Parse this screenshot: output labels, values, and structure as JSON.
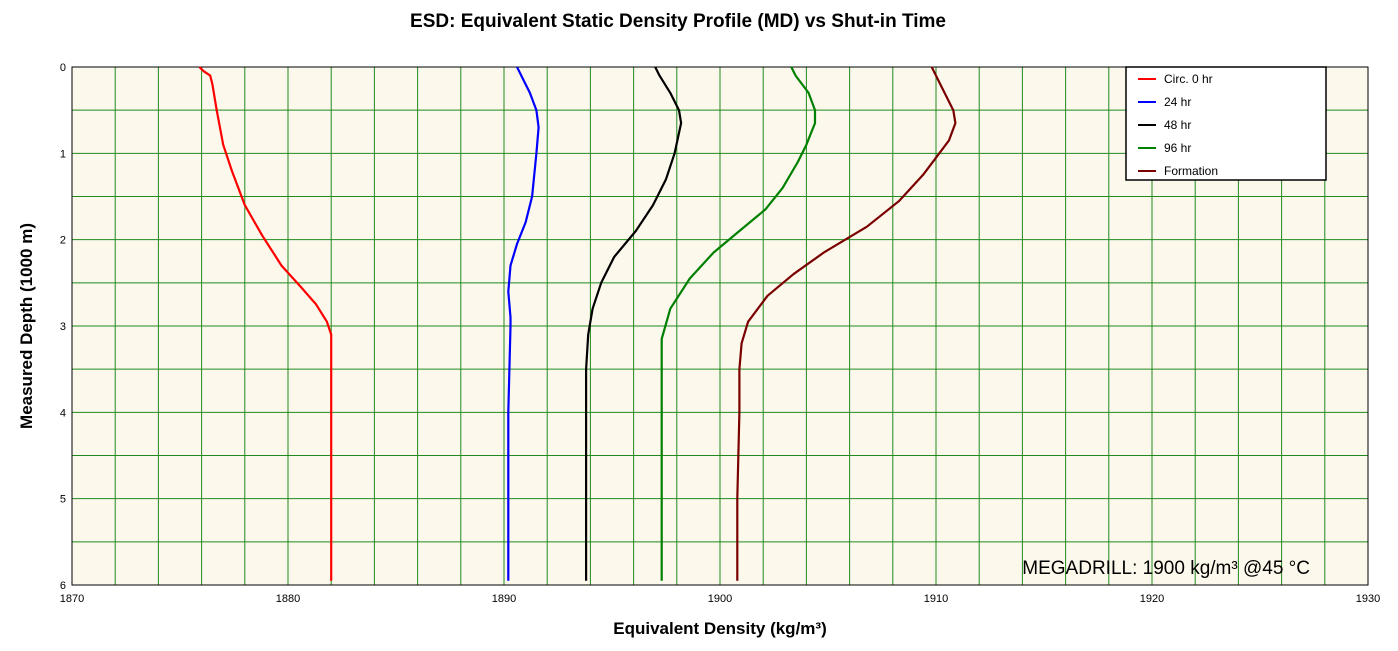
{
  "chart_data": {
    "type": "line",
    "title": "ESD: Equivalent Static Density Profile (MD) vs Shut-in Time",
    "xlabel": "Equivalent Density (kg/m³)",
    "ylabel": "Measured Depth (1000 m)",
    "xlim": [
      1870,
      1930
    ],
    "ylim": [
      0,
      6
    ],
    "y_inverted": true,
    "x_ticks": [
      "1870",
      "1880",
      "1890",
      "1900",
      "1910",
      "1920",
      "1930"
    ],
    "y_ticks": [
      "0",
      "1",
      "2",
      "3",
      "4",
      "5",
      "6"
    ],
    "grid": true,
    "plot_background": "#fcf8ec",
    "grid_color": "#1e8a1e",
    "legend_position": "top-right",
    "annotation": "MEGADRILL: 1900 kg/m³ @45 °C",
    "series": [
      {
        "name": "Circ. 0 hr",
        "color": "#ff0000",
        "points": [
          [
            1875.9,
            0
          ],
          [
            1876.1,
            0.05
          ],
          [
            1876.4,
            0.1
          ],
          [
            1876.5,
            0.2
          ],
          [
            1876.7,
            0.5
          ],
          [
            1877.0,
            0.9
          ],
          [
            1877.4,
            1.2
          ],
          [
            1878.0,
            1.6
          ],
          [
            1878.8,
            1.95
          ],
          [
            1879.7,
            2.3
          ],
          [
            1880.6,
            2.55
          ],
          [
            1881.3,
            2.75
          ],
          [
            1881.8,
            2.95
          ],
          [
            1882.0,
            3.1
          ],
          [
            1882.0,
            3.3
          ],
          [
            1882.0,
            4.0
          ],
          [
            1882.0,
            5.0
          ],
          [
            1882.0,
            5.95
          ]
        ]
      },
      {
        "name": "24 hr",
        "color": "#0000ff",
        "points": [
          [
            1890.6,
            0
          ],
          [
            1890.8,
            0.1
          ],
          [
            1891.2,
            0.3
          ],
          [
            1891.5,
            0.5
          ],
          [
            1891.6,
            0.7
          ],
          [
            1891.5,
            1.0
          ],
          [
            1891.3,
            1.5
          ],
          [
            1891.0,
            1.8
          ],
          [
            1890.6,
            2.05
          ],
          [
            1890.3,
            2.3
          ],
          [
            1890.2,
            2.6
          ],
          [
            1890.3,
            2.9
          ],
          [
            1890.3,
            3.0
          ],
          [
            1890.2,
            4.0
          ],
          [
            1890.2,
            5.0
          ],
          [
            1890.2,
            5.95
          ]
        ]
      },
      {
        "name": "48 hr",
        "color": "#000000",
        "points": [
          [
            1897.0,
            0
          ],
          [
            1897.2,
            0.1
          ],
          [
            1897.7,
            0.3
          ],
          [
            1898.1,
            0.5
          ],
          [
            1898.2,
            0.65
          ],
          [
            1897.9,
            1.0
          ],
          [
            1897.5,
            1.3
          ],
          [
            1896.9,
            1.6
          ],
          [
            1896.1,
            1.9
          ],
          [
            1895.1,
            2.2
          ],
          [
            1894.5,
            2.5
          ],
          [
            1894.1,
            2.8
          ],
          [
            1893.9,
            3.1
          ],
          [
            1893.8,
            3.5
          ],
          [
            1893.8,
            4.0
          ],
          [
            1893.8,
            5.0
          ],
          [
            1893.8,
            5.95
          ]
        ]
      },
      {
        "name": "96 hr",
        "color": "#008000",
        "points": [
          [
            1903.3,
            0
          ],
          [
            1903.5,
            0.1
          ],
          [
            1904.1,
            0.3
          ],
          [
            1904.4,
            0.5
          ],
          [
            1904.4,
            0.65
          ],
          [
            1904.0,
            0.9
          ],
          [
            1903.6,
            1.1
          ],
          [
            1902.9,
            1.4
          ],
          [
            1902.1,
            1.65
          ],
          [
            1900.9,
            1.9
          ],
          [
            1899.7,
            2.15
          ],
          [
            1898.6,
            2.45
          ],
          [
            1897.7,
            2.8
          ],
          [
            1897.3,
            3.15
          ],
          [
            1897.3,
            3.5
          ],
          [
            1897.3,
            4.0
          ],
          [
            1897.3,
            5.0
          ],
          [
            1897.3,
            5.95
          ]
        ]
      },
      {
        "name": "Formation",
        "color": "#7a0000",
        "points": [
          [
            1909.8,
            0
          ],
          [
            1910.0,
            0.1
          ],
          [
            1910.4,
            0.3
          ],
          [
            1910.8,
            0.5
          ],
          [
            1910.9,
            0.65
          ],
          [
            1910.6,
            0.85
          ],
          [
            1910.0,
            1.05
          ],
          [
            1909.4,
            1.25
          ],
          [
            1908.3,
            1.55
          ],
          [
            1906.8,
            1.85
          ],
          [
            1904.8,
            2.15
          ],
          [
            1903.4,
            2.4
          ],
          [
            1902.2,
            2.65
          ],
          [
            1901.3,
            2.95
          ],
          [
            1901.0,
            3.2
          ],
          [
            1900.9,
            3.5
          ],
          [
            1900.9,
            4.0
          ],
          [
            1900.8,
            5.0
          ],
          [
            1900.8,
            5.95
          ]
        ]
      }
    ]
  }
}
